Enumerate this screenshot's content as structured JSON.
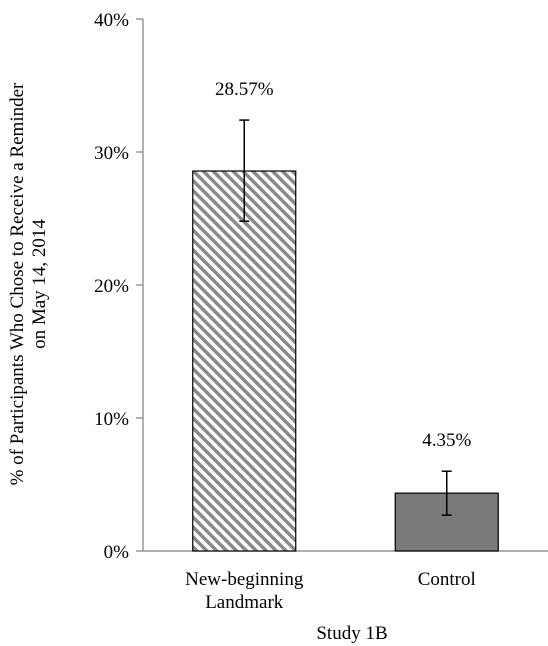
{
  "chart_data": {
    "type": "bar",
    "title": "",
    "xlabel": "Study 1B",
    "ylabel": "% of Participants Who Chose to Receive a Reminder on May 14, 2014",
    "ylabel_lines": [
      "% of Participants Who Chose to Receive a Reminder",
      "on May 14, 2014"
    ],
    "categories": [
      "New-beginning Landmark",
      "Control"
    ],
    "category_lines": [
      [
        "New-beginning",
        "Landmark"
      ],
      [
        "Control"
      ]
    ],
    "values": [
      28.57,
      4.35
    ],
    "data_labels": [
      "28.57%",
      "4.35%"
    ],
    "error_low": [
      24.8,
      2.7
    ],
    "error_high": [
      32.4,
      6.0
    ],
    "ylim": [
      0,
      40
    ],
    "yticks": [
      0,
      10,
      20,
      30,
      40
    ],
    "ytick_labels": [
      "0%",
      "10%",
      "20%",
      "30%",
      "40%"
    ],
    "grid": false,
    "legend": "none",
    "bar_styles": [
      "diagonal-hatch",
      "solid-gray"
    ],
    "colors": {
      "bar_solid": "#7a7a7a",
      "hatch": "#8a8a8a",
      "axis": "#808080",
      "outline": "#000000"
    }
  }
}
